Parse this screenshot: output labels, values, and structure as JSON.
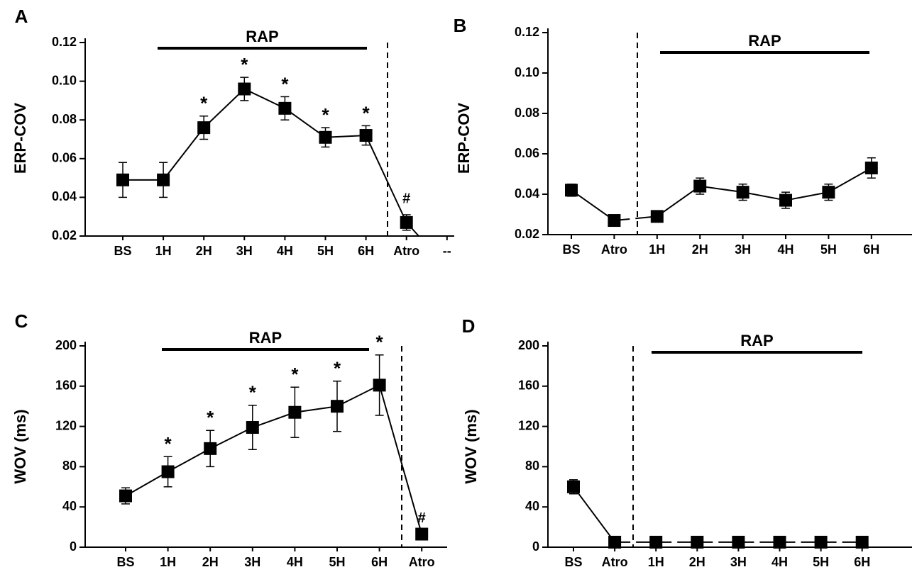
{
  "chart_data": [
    {
      "type": "line",
      "panel_label": "A",
      "y_label": "ERP-COV",
      "annotation": "RAP",
      "categories": [
        "BS",
        "1H",
        "2H",
        "3H",
        "4H",
        "5H",
        "6H",
        "Atro",
        "--"
      ],
      "values": [
        0.049,
        0.049,
        0.076,
        0.096,
        0.086,
        0.071,
        0.072,
        0.027,
        null
      ],
      "errors": [
        0.009,
        0.009,
        0.006,
        0.006,
        0.006,
        0.005,
        0.005,
        0.004,
        null
      ],
      "markers": [
        null,
        null,
        "*",
        "*",
        "*",
        "*",
        "*",
        "#",
        null
      ],
      "color": "#000000",
      "ylim": [
        0.02,
        0.12
      ],
      "yticks": [
        0.02,
        0.04,
        0.06,
        0.08,
        {
          "value": 0.1,
          "label": "0.10"
        },
        0.12
      ]
    },
    {
      "type": "line",
      "panel_label": "B",
      "y_label": "ERP-COV",
      "annotation": "RAP",
      "categories": [
        "BS",
        "Atro",
        "1H",
        "2H",
        "3H",
        "4H",
        "5H",
        "6H"
      ],
      "values": [
        0.042,
        0.027,
        0.029,
        0.044,
        0.041,
        0.037,
        0.041,
        0.053
      ],
      "errors": [
        0.003,
        0.002,
        0.002,
        0.004,
        0.004,
        0.004,
        0.004,
        0.005
      ],
      "color": "#000000",
      "ylim": [
        0.02,
        0.12
      ],
      "yticks": [
        0.02,
        0.04,
        0.06,
        0.08,
        {
          "value": 0.1,
          "label": "0.10"
        },
        0.12
      ]
    },
    {
      "type": "line",
      "panel_label": "C",
      "y_label": "WOV (ms)",
      "annotation": "RAP",
      "categories": [
        "BS",
        "1H",
        "2H",
        "3H",
        "4H",
        "5H",
        "6H",
        "Atro"
      ],
      "values": [
        51,
        75,
        98,
        119,
        134,
        140,
        161,
        13
      ],
      "errors": [
        8,
        15,
        18,
        22,
        25,
        25,
        30,
        0
      ],
      "markers": [
        null,
        "*",
        "*",
        "*",
        "*",
        "*",
        "*",
        "#"
      ],
      "color": "#000000",
      "ylim": [
        0,
        200
      ],
      "yticks": [
        0,
        40,
        80,
        120,
        160,
        200
      ]
    },
    {
      "type": "line",
      "panel_label": "D",
      "y_label": "WOV (ms)",
      "annotation": "RAP",
      "categories": [
        "BS",
        "Atro",
        "1H",
        "2H",
        "3H",
        "4H",
        "5H",
        "6H"
      ],
      "values": [
        60,
        5,
        5,
        5,
        5,
        5,
        5,
        5
      ],
      "errors": [
        7,
        0,
        0,
        0,
        0,
        0,
        0,
        0
      ],
      "color": "#000000",
      "ylim": [
        0,
        200
      ],
      "yticks": [
        0,
        40,
        80,
        120,
        160,
        200
      ]
    }
  ]
}
